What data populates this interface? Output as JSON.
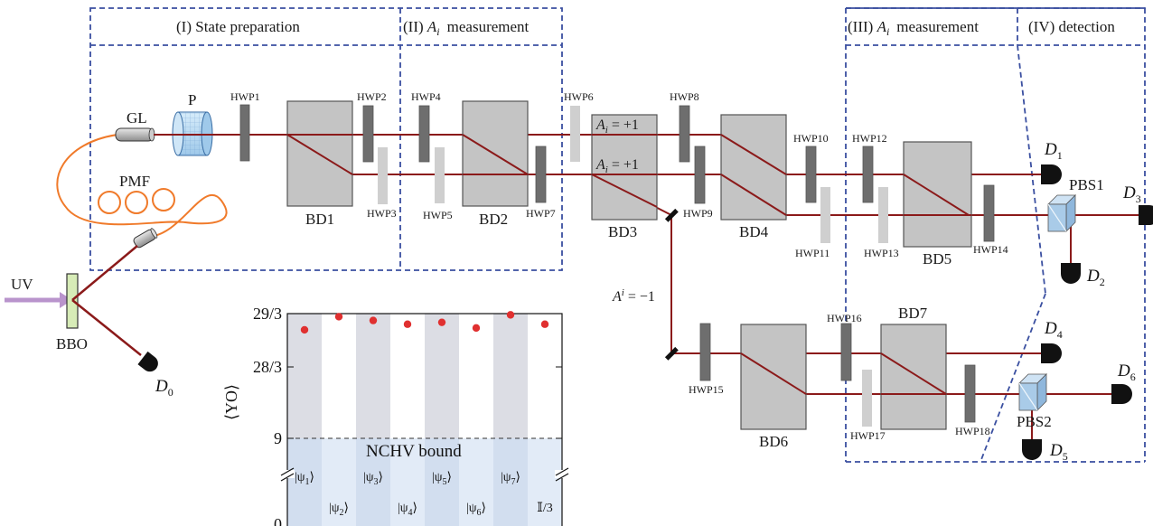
{
  "sections": {
    "s1": "(I) State preparation",
    "s2_prefix": "(II) ",
    "s2_var": "A",
    "s2_sub": "i",
    "s2_suffix": "measurement",
    "s3_prefix": "(III) ",
    "s3_var": "A",
    "s3_sub": "i",
    "s3_suffix": "measurement",
    "s4": "(IV)  detection"
  },
  "components": {
    "gl": "GL",
    "p": "P",
    "pmf": "PMF",
    "uv": "UV",
    "bbo": "BBO",
    "bd1": "BD1",
    "bd2": "BD2",
    "bd3": "BD3",
    "bd4": "BD4",
    "bd5": "BD5",
    "bd6": "BD6",
    "bd7": "BD7",
    "pbs1": "PBS1",
    "pbs2": "PBS2"
  },
  "hwp": {
    "hwp1": "HWP1",
    "hwp2": "HWP2",
    "hwp3": "HWP3",
    "hwp4": "HWP4",
    "hwp5": "HWP5",
    "hwp6": "HWP6",
    "hwp7": "HWP7",
    "hwp8": "HWP8",
    "hwp9": "HWP9",
    "hwp10": "HWP10",
    "hwp11": "HWP11",
    "hwp12": "HWP12",
    "hwp13": "HWP13",
    "hwp14": "HWP14",
    "hwp15": "HWP15",
    "hwp16": "HWP16",
    "hwp17": "HWP17",
    "hwp18": "HWP18"
  },
  "outcomes": {
    "var": "A",
    "sub": "i",
    "plus": " = +1",
    "minus": " = −1"
  },
  "detectors": {
    "d": "D",
    "d0": "0",
    "d1": "1",
    "d2": "2",
    "d3": "3",
    "d4": "4",
    "d5": "5",
    "d6": "6"
  },
  "colors": {
    "beam": "#8b1a1a",
    "fiber": "#f07a2a",
    "uv": "#b994cc",
    "box": "#3a4fa0",
    "bd": "#c4c4c4",
    "hwp_dark": "#6e6e6e",
    "hwp_light": "#cfcfcf",
    "pbs": "#a9cbe8",
    "dot": "#e03030"
  },
  "chart_data": {
    "type": "scatter",
    "ylabel": "⟨YO⟩",
    "yticks": [
      "29/3",
      "28/3",
      "9",
      "0"
    ],
    "ylim": [
      9,
      9.6667
    ],
    "axis_break": true,
    "bound_label": "NCHV bound",
    "bound_value": 9,
    "categories": [
      "|ψ1⟩",
      "|ψ2⟩",
      "|ψ3⟩",
      "|ψ4⟩",
      "|ψ5⟩",
      "|ψ6⟩",
      "|ψ7⟩",
      "𝕀/3"
    ],
    "category_base": [
      "|ψ",
      "|ψ",
      "|ψ",
      "|ψ",
      "|ψ",
      "|ψ",
      "|ψ",
      "𝕀/3"
    ],
    "category_sub": [
      "1",
      "2",
      "3",
      "4",
      "5",
      "6",
      "7",
      ""
    ],
    "category_tail": [
      "⟩",
      "⟩",
      "⟩",
      "⟩",
      "⟩",
      "⟩",
      "⟩",
      ""
    ],
    "values": [
      9.58,
      9.65,
      9.63,
      9.61,
      9.62,
      9.59,
      9.66,
      9.61
    ]
  }
}
